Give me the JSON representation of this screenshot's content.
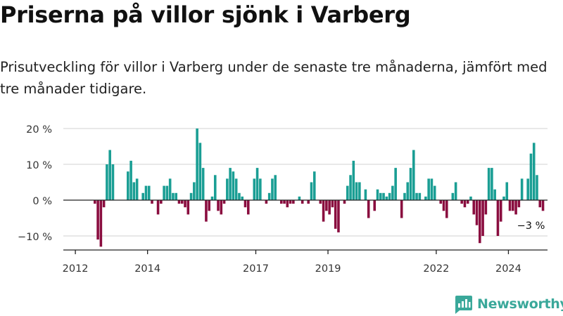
{
  "header": {
    "title": "Priserna på villor sjönk i Varberg",
    "subtitle": "Prisutveckling för villor i Varberg under de senaste tre månaderna, jämfört med tre månader tidigare."
  },
  "brand": {
    "name": "Newsworthy",
    "icon": "newsworthy-logo-icon"
  },
  "colors": {
    "positive": "#1a9e94",
    "negative": "#8a0d3f",
    "grid": "#d9d9d9",
    "axis": "#222222",
    "brand": "#3aa89a"
  },
  "chart_data": {
    "type": "bar",
    "x_start": "2012-01",
    "x_step": "month",
    "xlim": [
      "2011-09",
      "2025-02"
    ],
    "xticks": [
      "2012",
      "2014",
      "2017",
      "2019",
      "2022",
      "2024"
    ],
    "ylim": [
      -15,
      21
    ],
    "yticks": [
      -10,
      0,
      10,
      20
    ],
    "ytick_labels": [
      "−10 %",
      "0 %",
      "10 %",
      "20 %"
    ],
    "grid": true,
    "annotation": {
      "label": "−3 %",
      "date": "2024-08"
    },
    "values": [
      0,
      0,
      0,
      0,
      0,
      0,
      -1,
      -11,
      -13,
      -2,
      10,
      14,
      10,
      0,
      0,
      0,
      0,
      8,
      11,
      5,
      6,
      0,
      2,
      4,
      4,
      -1,
      0,
      -4,
      -1,
      4,
      4,
      6,
      2,
      2,
      -1,
      -1,
      -2,
      -4,
      2,
      5,
      20,
      16,
      9,
      -6,
      -3,
      1,
      7,
      -3,
      -4,
      -1,
      6,
      9,
      8,
      6,
      2,
      1,
      -2,
      -4,
      0,
      6,
      9,
      6,
      0,
      -1,
      2,
      6,
      7,
      0,
      -1,
      -1,
      -2,
      -1,
      -1,
      0,
      1,
      -1,
      0,
      -1,
      5,
      8,
      0,
      -1,
      -6,
      -3,
      -4,
      -2,
      -8,
      -9,
      0,
      -1,
      4,
      7,
      11,
      5,
      5,
      0,
      3,
      -5,
      0,
      -3,
      3,
      2,
      2,
      1,
      2,
      4,
      9,
      0,
      -5,
      2,
      5,
      9,
      14,
      2,
      2,
      0,
      1,
      6,
      6,
      4,
      0,
      -1,
      -3,
      -5,
      0,
      2,
      5,
      0,
      -1,
      -2,
      -1,
      1,
      -4,
      -7,
      -12,
      -10,
      -4,
      9,
      9,
      3,
      -10,
      -6,
      1,
      5,
      -3,
      -3,
      -4,
      -2,
      6,
      0,
      6,
      13,
      16,
      7,
      -2,
      -3
    ]
  }
}
